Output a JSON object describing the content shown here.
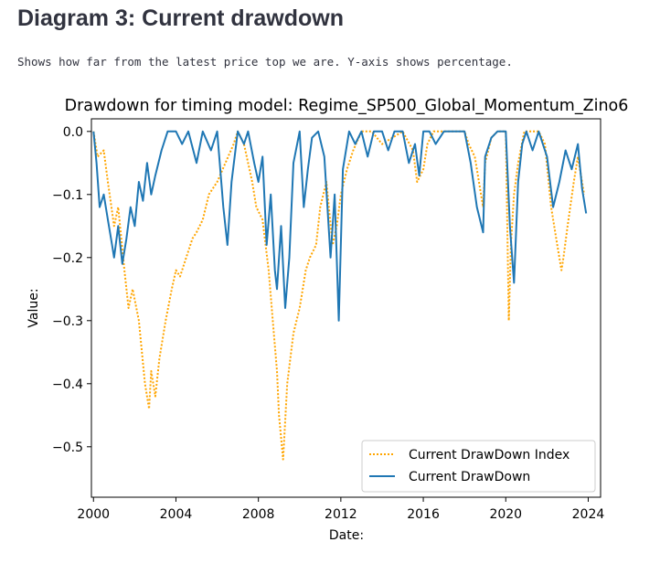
{
  "page": {
    "heading": "Diagram 3: Current drawdown",
    "description": "Shows how far from the latest price top we are. Y-axis shows percentage."
  },
  "chart_data": {
    "type": "line",
    "title": "Drawdown for timing model: Regime_SP500_Global_Momentum_Zino6",
    "xlabel": "Date:",
    "ylabel": "Value:",
    "xlim": [
      1999.9,
      2024.6
    ],
    "ylim": [
      -0.58,
      0.02
    ],
    "xticks": [
      2000,
      2004,
      2008,
      2012,
      2016,
      2020,
      2024
    ],
    "yticks": [
      0.0,
      -0.1,
      -0.2,
      -0.3,
      -0.4,
      -0.5
    ],
    "ytick_labels": [
      "0.0",
      "−0.1",
      "−0.2",
      "−0.3",
      "−0.4",
      "−0.5"
    ],
    "legend_position": "lower-right",
    "colors": {
      "index": "#ffa500",
      "drawdown": "#1f77b4"
    },
    "series": [
      {
        "name": "Current DrawDown Index",
        "style": "dotted",
        "x": [
          2000.0,
          2000.2,
          2000.5,
          2000.7,
          2001.0,
          2001.2,
          2001.5,
          2001.7,
          2001.9,
          2002.2,
          2002.5,
          2002.7,
          2002.8,
          2003.0,
          2003.2,
          2003.5,
          2003.8,
          2004.0,
          2004.2,
          2004.5,
          2004.8,
          2005.0,
          2005.3,
          2005.6,
          2006.0,
          2006.4,
          2006.8,
          2007.0,
          2007.3,
          2007.7,
          2007.9,
          2008.2,
          2008.5,
          2008.7,
          2008.9,
          2009.0,
          2009.2,
          2009.4,
          2009.7,
          2010.0,
          2010.3,
          2010.5,
          2010.8,
          2011.0,
          2011.3,
          2011.6,
          2011.8,
          2012.0,
          2012.3,
          2012.6,
          2013.0,
          2013.5,
          2014.0,
          2014.5,
          2015.0,
          2015.5,
          2015.7,
          2016.0,
          2016.2,
          2016.5,
          2017.0,
          2017.5,
          2018.0,
          2018.2,
          2018.5,
          2018.9,
          2019.0,
          2019.3,
          2019.6,
          2020.0,
          2020.15,
          2020.25,
          2020.4,
          2020.6,
          2020.9,
          2021.2,
          2021.6,
          2021.9,
          2022.2,
          2022.5,
          2022.7,
          2022.8,
          2023.0,
          2023.3,
          2023.5,
          2023.8
        ],
        "values": [
          0.0,
          -0.04,
          -0.03,
          -0.08,
          -0.15,
          -0.12,
          -0.22,
          -0.28,
          -0.25,
          -0.3,
          -0.4,
          -0.44,
          -0.38,
          -0.42,
          -0.36,
          -0.3,
          -0.25,
          -0.22,
          -0.23,
          -0.2,
          -0.17,
          -0.16,
          -0.14,
          -0.1,
          -0.08,
          -0.05,
          -0.02,
          0.0,
          -0.02,
          -0.08,
          -0.12,
          -0.14,
          -0.22,
          -0.3,
          -0.38,
          -0.45,
          -0.52,
          -0.4,
          -0.32,
          -0.28,
          -0.22,
          -0.2,
          -0.18,
          -0.12,
          -0.08,
          -0.18,
          -0.15,
          -0.1,
          -0.06,
          -0.03,
          0.0,
          0.0,
          -0.02,
          -0.01,
          0.0,
          -0.03,
          -0.08,
          -0.06,
          -0.02,
          0.0,
          0.0,
          0.0,
          0.0,
          -0.02,
          -0.04,
          -0.12,
          -0.05,
          -0.01,
          0.0,
          0.0,
          -0.3,
          -0.18,
          -0.1,
          -0.05,
          0.0,
          0.0,
          0.0,
          -0.02,
          -0.12,
          -0.18,
          -0.22,
          -0.2,
          -0.15,
          -0.08,
          -0.04,
          -0.1
        ]
      },
      {
        "name": "Current DrawDown",
        "style": "solid",
        "x": [
          2000.0,
          2000.15,
          2000.3,
          2000.5,
          2000.7,
          2000.9,
          2001.0,
          2001.2,
          2001.4,
          2001.6,
          2001.8,
          2002.0,
          2002.2,
          2002.4,
          2002.6,
          2002.8,
          2003.0,
          2003.3,
          2003.6,
          2004.0,
          2004.3,
          2004.6,
          2005.0,
          2005.3,
          2005.7,
          2006.0,
          2006.3,
          2006.5,
          2006.7,
          2007.0,
          2007.3,
          2007.5,
          2007.8,
          2008.0,
          2008.2,
          2008.4,
          2008.6,
          2008.8,
          2008.9,
          2009.1,
          2009.3,
          2009.5,
          2009.7,
          2010.0,
          2010.2,
          2010.4,
          2010.6,
          2010.9,
          2011.2,
          2011.5,
          2011.7,
          2011.9,
          2012.1,
          2012.4,
          2012.7,
          2013.0,
          2013.3,
          2013.6,
          2014.0,
          2014.3,
          2014.6,
          2015.0,
          2015.3,
          2015.6,
          2015.8,
          2016.0,
          2016.3,
          2016.6,
          2017.0,
          2017.5,
          2018.0,
          2018.3,
          2018.6,
          2018.9,
          2019.0,
          2019.3,
          2019.6,
          2020.0,
          2020.2,
          2020.4,
          2020.6,
          2020.8,
          2021.0,
          2021.3,
          2021.6,
          2022.0,
          2022.3,
          2022.6,
          2022.9,
          2023.2,
          2023.5,
          2023.7,
          2023.9
        ],
        "values": [
          0.0,
          -0.05,
          -0.12,
          -0.1,
          -0.14,
          -0.18,
          -0.2,
          -0.15,
          -0.21,
          -0.17,
          -0.12,
          -0.15,
          -0.08,
          -0.11,
          -0.05,
          -0.1,
          -0.07,
          -0.03,
          0.0,
          0.0,
          -0.02,
          0.0,
          -0.05,
          0.0,
          -0.03,
          0.0,
          -0.12,
          -0.18,
          -0.08,
          0.0,
          -0.02,
          0.0,
          -0.05,
          -0.08,
          -0.04,
          -0.18,
          -0.1,
          -0.22,
          -0.25,
          -0.15,
          -0.28,
          -0.2,
          -0.05,
          0.0,
          -0.12,
          -0.06,
          -0.01,
          0.0,
          -0.04,
          -0.2,
          -0.1,
          -0.3,
          -0.06,
          0.0,
          -0.02,
          0.0,
          -0.04,
          0.0,
          0.0,
          -0.03,
          0.0,
          0.0,
          -0.05,
          -0.02,
          -0.07,
          0.0,
          0.0,
          -0.02,
          0.0,
          0.0,
          0.0,
          -0.05,
          -0.12,
          -0.16,
          -0.04,
          -0.01,
          0.0,
          0.0,
          -0.15,
          -0.24,
          -0.08,
          -0.02,
          0.0,
          -0.03,
          0.0,
          -0.04,
          -0.12,
          -0.08,
          -0.03,
          -0.06,
          -0.02,
          -0.09,
          -0.13
        ]
      }
    ]
  }
}
